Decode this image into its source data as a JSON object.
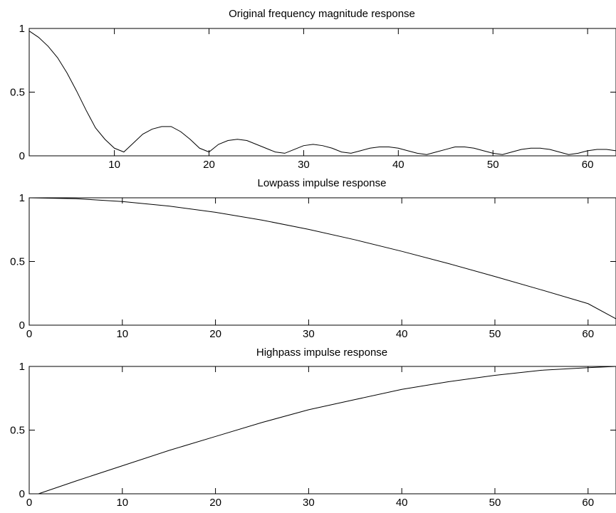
{
  "chart_data": [
    {
      "type": "line",
      "title": "Original frequency magnitude response",
      "xlabel": "",
      "ylabel": "",
      "xlim": [
        1,
        63
      ],
      "ylim": [
        0,
        1
      ],
      "xticks": [
        10,
        20,
        30,
        40,
        50,
        60
      ],
      "yticks": [
        0,
        0.5,
        1
      ],
      "xtick_labels": [
        "10",
        "20",
        "30",
        "40",
        "50",
        "60"
      ],
      "ytick_labels": [
        "0",
        "0.5",
        "1"
      ],
      "grid": false,
      "legend": "none",
      "series": [
        {
          "x": [
            1,
            2,
            3,
            4,
            5,
            6,
            7,
            8,
            9,
            10,
            11,
            12,
            13,
            14,
            15,
            16,
            17,
            18,
            19,
            20,
            21,
            22,
            23,
            24,
            25,
            26,
            27,
            28,
            29,
            30,
            31,
            32,
            33,
            34,
            35,
            36,
            37,
            38,
            39,
            40,
            41,
            42,
            43,
            44,
            45,
            46,
            47,
            48,
            49,
            50,
            51,
            52,
            53,
            54,
            55,
            56,
            57,
            58,
            59,
            60,
            61,
            62,
            63
          ],
          "y": [
            0.98,
            0.93,
            0.86,
            0.77,
            0.65,
            0.51,
            0.36,
            0.22,
            0.13,
            0.06,
            0.03,
            0.1,
            0.17,
            0.21,
            0.23,
            0.23,
            0.19,
            0.13,
            0.06,
            0.03,
            0.09,
            0.12,
            0.13,
            0.12,
            0.09,
            0.06,
            0.03,
            0.02,
            0.05,
            0.08,
            0.09,
            0.08,
            0.06,
            0.03,
            0.02,
            0.04,
            0.06,
            0.07,
            0.07,
            0.06,
            0.04,
            0.02,
            0.01,
            0.03,
            0.05,
            0.07,
            0.07,
            0.06,
            0.04,
            0.02,
            0.01,
            0.03,
            0.05,
            0.06,
            0.06,
            0.05,
            0.03,
            0.01,
            0.02,
            0.04,
            0.05,
            0.05,
            0.04
          ]
        }
      ]
    },
    {
      "type": "line",
      "title": "Lowpass impulse response",
      "xlabel": "",
      "ylabel": "",
      "xlim": [
        0,
        63
      ],
      "ylim": [
        0,
        1
      ],
      "xticks": [
        0,
        10,
        20,
        30,
        40,
        50,
        60
      ],
      "yticks": [
        0,
        0.5,
        1
      ],
      "xtick_labels": [
        "0",
        "10",
        "20",
        "30",
        "40",
        "50",
        "60"
      ],
      "ytick_labels": [
        "0",
        "0.5",
        "1"
      ],
      "grid": false,
      "legend": "none",
      "series": [
        {
          "x": [
            0,
            5,
            10,
            15,
            20,
            25,
            30,
            35,
            40,
            45,
            50,
            55,
            60,
            63
          ],
          "y": [
            1.0,
            0.993,
            0.971,
            0.935,
            0.886,
            0.825,
            0.752,
            0.67,
            0.58,
            0.484,
            0.382,
            0.277,
            0.169,
            0.05
          ]
        }
      ]
    },
    {
      "type": "line",
      "title": "Highpass impulse response",
      "xlabel": "",
      "ylabel": "",
      "xlim": [
        0,
        63
      ],
      "ylim": [
        0,
        1
      ],
      "xticks": [
        0,
        10,
        20,
        30,
        40,
        50,
        60
      ],
      "yticks": [
        0,
        0.5,
        1
      ],
      "xtick_labels": [
        "0",
        "10",
        "20",
        "30",
        "40",
        "50",
        "60"
      ],
      "ytick_labels": [
        "0",
        "0.5",
        "1"
      ],
      "grid": false,
      "legend": "none",
      "series": [
        {
          "x": [
            1,
            5,
            10,
            15,
            20,
            25,
            30,
            35,
            40,
            45,
            50,
            55,
            60,
            63
          ],
          "y": [
            0.0,
            0.1,
            0.22,
            0.34,
            0.45,
            0.56,
            0.66,
            0.74,
            0.82,
            0.88,
            0.93,
            0.97,
            0.99,
            1.0
          ]
        }
      ]
    }
  ]
}
